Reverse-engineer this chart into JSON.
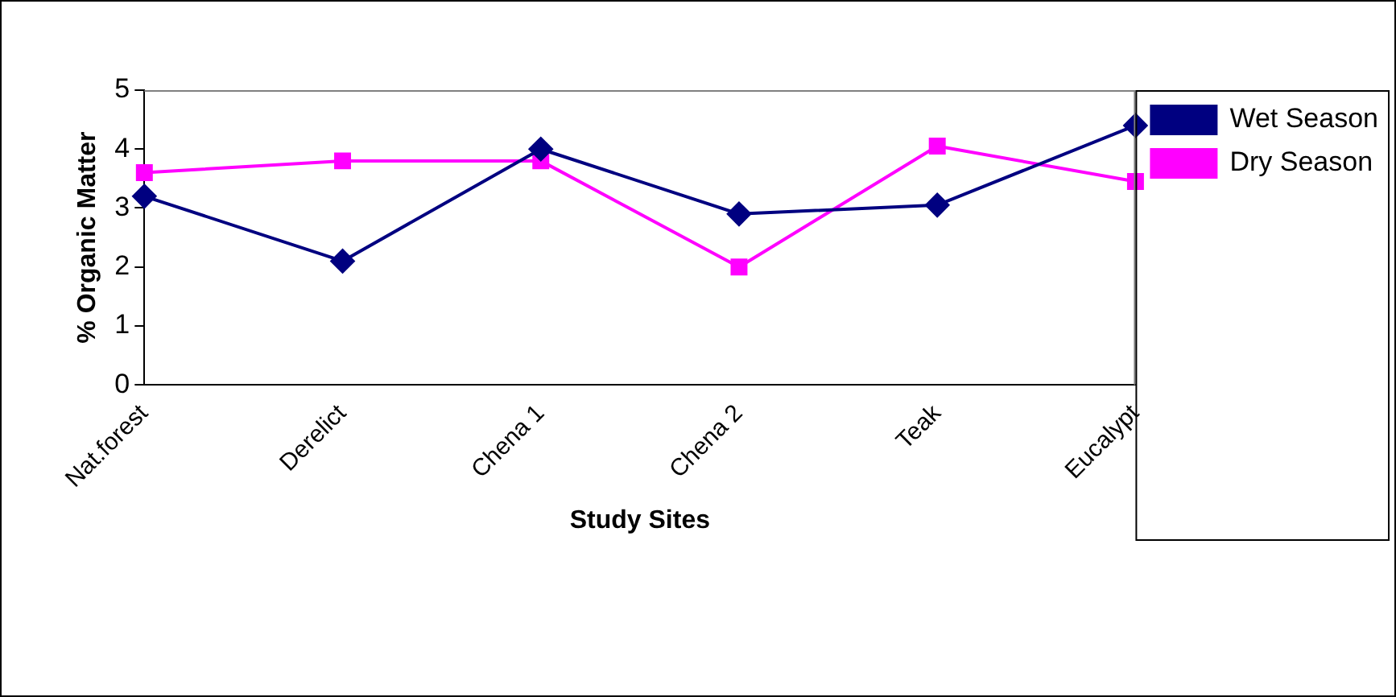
{
  "chart_data": {
    "type": "line",
    "xlabel": "Study Sites",
    "ylabel": "% Organic Matter",
    "categories": [
      "Nat.forest",
      "Derelict",
      "Chena 1",
      "Chena 2",
      "Teak",
      "Eucalypt"
    ],
    "series": [
      {
        "name": "Wet Season",
        "color": "#000080",
        "marker": "diamond",
        "values": [
          3.2,
          2.1,
          4.0,
          2.9,
          3.05,
          4.4
        ]
      },
      {
        "name": "Dry Season",
        "color": "#ff00ff",
        "marker": "square",
        "values": [
          3.6,
          3.8,
          3.8,
          2.0,
          4.05,
          3.45
        ]
      }
    ],
    "ylim": [
      0,
      5
    ],
    "yticks": [
      0,
      1,
      2,
      3,
      4,
      5
    ],
    "grid": false,
    "legend": "right",
    "line_style": "solid"
  }
}
